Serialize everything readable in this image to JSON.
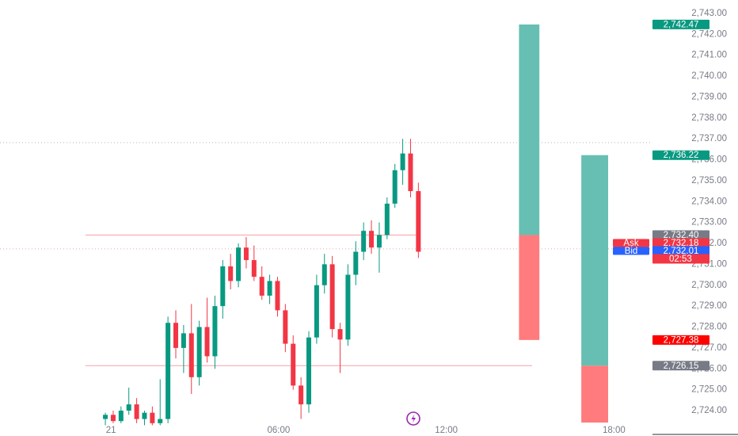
{
  "chart_data": {
    "type": "candlestick",
    "x": [
      -0.2,
      0.08,
      0.36,
      0.64,
      0.92,
      1.2,
      1.48,
      1.76,
      2.04,
      2.32,
      2.6,
      2.88,
      3.16,
      3.44,
      3.72,
      4,
      4.28,
      4.56,
      4.84,
      5.12,
      5.4,
      5.68,
      5.96,
      6.24,
      6.52,
      6.8,
      7.08,
      7.36,
      7.64,
      7.92,
      8.2,
      8.48,
      8.76,
      9.04,
      9.32,
      9.6,
      9.88,
      10.16,
      10.44,
      10.72,
      11.0
    ],
    "open": [
      2723.6,
      2723.8,
      2723.5,
      2724.0,
      2724.3,
      2723.6,
      2723.9,
      2723.4,
      2723.6,
      2728.2,
      2727.0,
      2727.7,
      2725.6,
      2728.0,
      2726.6,
      2729.0,
      2730.9,
      2730.2,
      2731.8,
      2731.2,
      2730.4,
      2729.5,
      2730.2,
      2728.8,
      2727.2,
      2725.2,
      2724.3,
      2727.5,
      2730.0,
      2731.0,
      2727.9,
      2727.4,
      2730.5,
      2731.6,
      2732.6,
      2731.8,
      2732.4,
      2733.9,
      2735.5,
      2736.3,
      2734.5
    ],
    "high": [
      2723.9,
      2724.0,
      2724.2,
      2725.1,
      2724.6,
      2724.0,
      2724.2,
      2725.5,
      2728.5,
      2728.8,
      2728.1,
      2729.1,
      2728.3,
      2729.4,
      2729.5,
      2731.2,
      2731.5,
      2732.0,
      2732.3,
      2731.9,
      2730.9,
      2730.5,
      2730.4,
      2729.1,
      2727.6,
      2725.6,
      2727.8,
      2730.5,
      2731.5,
      2731.4,
      2728.2,
      2731.0,
      2732.1,
      2733.0,
      2733.1,
      2733.0,
      2734.2,
      2735.8,
      2737.0,
      2737.0,
      2734.9
    ],
    "low": [
      2723.3,
      2723.4,
      2723.4,
      2723.8,
      2723.4,
      2723.3,
      2723.3,
      2723.3,
      2723.4,
      2726.5,
      2725.8,
      2724.8,
      2725.2,
      2726.3,
      2726.0,
      2728.4,
      2729.8,
      2729.9,
      2730.8,
      2730.2,
      2729.3,
      2729.1,
      2728.5,
      2726.8,
      2725.0,
      2723.6,
      2723.9,
      2727.2,
      2729.6,
      2727.5,
      2725.8,
      2727.1,
      2730.0,
      2731.2,
      2731.5,
      2730.6,
      2732.2,
      2733.7,
      2734.8,
      2734.2,
      2731.3
    ],
    "close": [
      2723.8,
      2723.5,
      2724.0,
      2724.3,
      2723.6,
      2723.9,
      2723.4,
      2723.6,
      2728.2,
      2727.0,
      2727.7,
      2725.6,
      2728.0,
      2726.6,
      2729.0,
      2730.9,
      2730.2,
      2731.8,
      2731.2,
      2730.4,
      2729.5,
      2730.2,
      2728.8,
      2727.2,
      2725.2,
      2724.3,
      2727.5,
      2730.0,
      2731.0,
      2727.9,
      2727.4,
      2730.5,
      2731.6,
      2732.6,
      2731.8,
      2732.4,
      2733.9,
      2735.5,
      2736.3,
      2734.5,
      2731.6
    ],
    "up_color": "#089981",
    "down_color": "#f23645",
    "xlim": [
      -3.97,
      19.32
    ],
    "xticks": [
      {
        "value": 0,
        "label": "21"
      },
      {
        "value": 6,
        "label": "06:00"
      },
      {
        "value": 12,
        "label": "12:00"
      },
      {
        "value": 18,
        "label": "18:00"
      }
    ],
    "ylim": [
      2723.28,
      2743.64
    ],
    "yticks": [
      {
        "value": 2724,
        "label": "2,724.00"
      },
      {
        "value": 2725,
        "label": "2,725.00"
      },
      {
        "value": 2726,
        "label": "2,726.00"
      },
      {
        "value": 2727,
        "label": "2,727.00"
      },
      {
        "value": 2728,
        "label": "2,728.00"
      },
      {
        "value": 2729,
        "label": "2,729.00"
      },
      {
        "value": 2730,
        "label": "2,730.00"
      },
      {
        "value": 2731,
        "label": "2,731.00"
      },
      {
        "value": 2732,
        "label": "2,732.00"
      },
      {
        "value": 2733,
        "label": "2,733.00"
      },
      {
        "value": 2734,
        "label": "2,734.00"
      },
      {
        "value": 2735,
        "label": "2,735.00"
      },
      {
        "value": 2736,
        "label": "2,736.00"
      },
      {
        "value": 2737,
        "label": "2,737.00"
      },
      {
        "value": 2738,
        "label": "2,738.00"
      },
      {
        "value": 2739,
        "label": "2,739.00"
      },
      {
        "value": 2740,
        "label": "2,740.00"
      },
      {
        "value": 2741,
        "label": "2,741.00"
      },
      {
        "value": 2742,
        "label": "2,742.00"
      },
      {
        "value": 2743,
        "label": "2,743.00"
      }
    ],
    "level_lines": [
      {
        "value": 2732.4,
        "x": [
          -0.91,
          11.05
        ],
        "color": "#f7a1a8"
      },
      {
        "value": 2726.15,
        "x": [
          -0.91,
          15.07
        ],
        "color": "#f7a1a8"
      }
    ],
    "dotted_lines": [
      {
        "value": 2736.82,
        "color": "#b2b5be"
      },
      {
        "value": 2731.74,
        "color": "#f7a1a8"
      }
    ],
    "positions": [
      {
        "x": [
          14.6,
          15.33
        ],
        "top": 2742.47,
        "mid": 2732.4,
        "bottom": 2727.38,
        "profit_color": "#66bfb2",
        "loss_color": "#ff7b7e"
      },
      {
        "x": [
          16.83,
          17.79
        ],
        "top": 2736.22,
        "mid": 2726.15,
        "bottom": 2723.43,
        "profit_color": "#66bfb2",
        "loss_color": "#ff7b7e"
      }
    ],
    "price_labels": [
      {
        "value": 2742.47,
        "label": "2,742.47",
        "color": "#089981"
      },
      {
        "value": 2736.22,
        "label": "2,736.22",
        "color": "#089981"
      },
      {
        "value": 2732.4,
        "label": "2,732.40",
        "color": "#787b86"
      },
      {
        "value": 2732.18,
        "label": "2,732.18",
        "color": "#f23645",
        "tag": "Ask"
      },
      {
        "value": 2732.01,
        "label": "2,732.01",
        "color": "#2962ff",
        "tag": "Bid"
      },
      {
        "value": 2727.38,
        "label": "2,727.38",
        "color": "#ff0000"
      },
      {
        "value": 2726.15,
        "label": "2,726.15",
        "color": "#787b86"
      }
    ],
    "countdown": {
      "text": "02:53",
      "color": "#f23645"
    }
  }
}
